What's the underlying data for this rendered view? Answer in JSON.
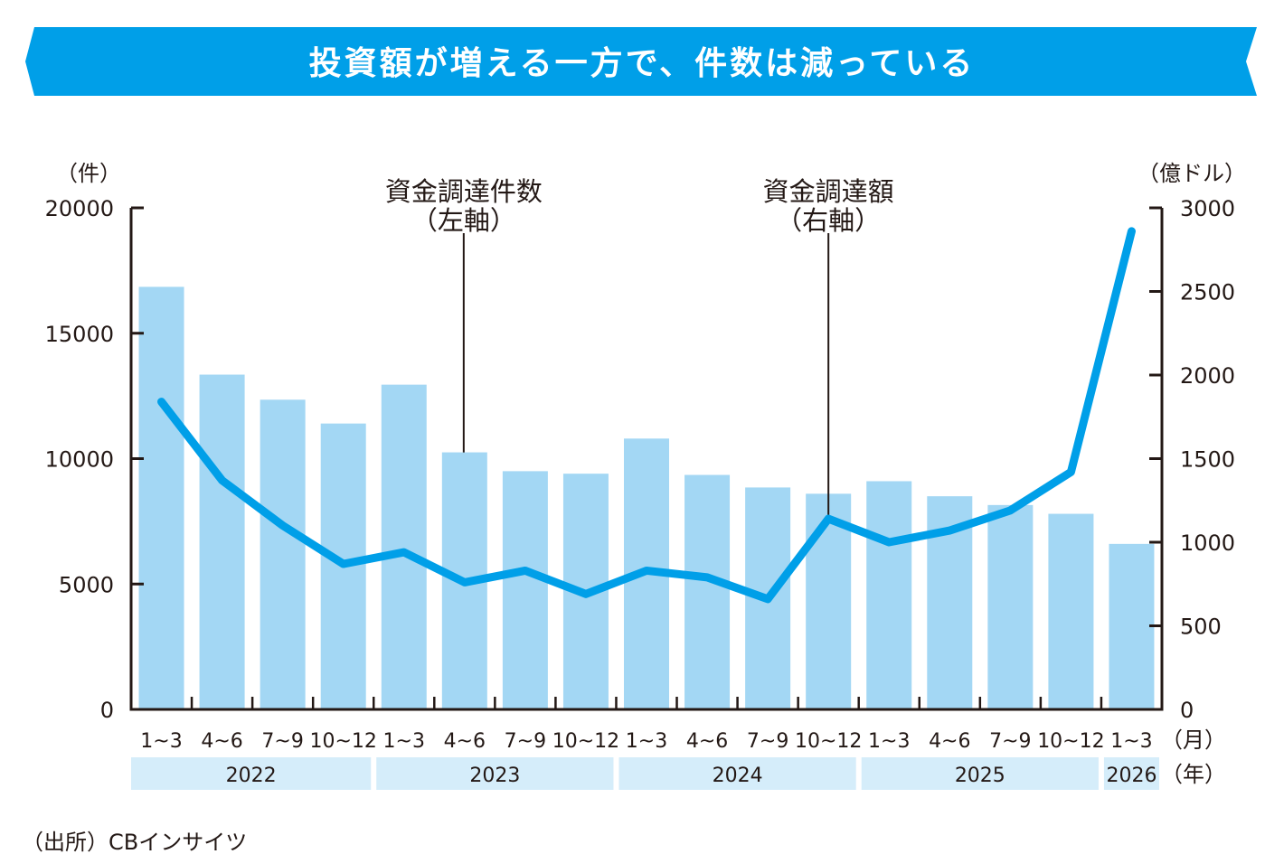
{
  "chart_data": {
    "type": "bar+line",
    "title": "投資額が増える一方で、件数は減っている",
    "left_axis": {
      "unit": "（件）",
      "ylim": [
        0,
        20000
      ],
      "ticks": [
        0,
        5000,
        10000,
        15000,
        20000
      ],
      "tick_labels": [
        "0",
        "5000",
        "10000",
        "15000",
        "20000"
      ]
    },
    "right_axis": {
      "unit": "（億ドル）",
      "ylim": [
        0,
        3000
      ],
      "ticks": [
        0,
        500,
        1000,
        1500,
        2000,
        2500,
        3000
      ],
      "tick_labels": [
        "0",
        "500",
        "1000",
        "1500",
        "2000",
        "2500",
        "3000"
      ]
    },
    "categories": [
      "1~3",
      "4~6",
      "7~9",
      "10~12",
      "1~3",
      "4~6",
      "7~9",
      "10~12",
      "1~3",
      "4~6",
      "7~9",
      "10~12",
      "1~3",
      "4~6",
      "7~9",
      "10~12",
      "1~3"
    ],
    "month_unit": "（月）",
    "years": [
      {
        "label": "2022",
        "span": 4
      },
      {
        "label": "2023",
        "span": 4
      },
      {
        "label": "2024",
        "span": 4
      },
      {
        "label": "2025",
        "span": 4
      },
      {
        "label": "2026",
        "span": 1
      }
    ],
    "year_unit": "（年）",
    "series": [
      {
        "name": "資金調達件数（左軸）",
        "type": "bar",
        "axis": "left",
        "values": [
          16850,
          13350,
          12350,
          11400,
          12950,
          10250,
          9500,
          9400,
          10800,
          9350,
          8850,
          8600,
          9100,
          8500,
          8150,
          7800,
          6600
        ]
      },
      {
        "name": "資金調達額（右軸）",
        "type": "line",
        "axis": "right",
        "values": [
          1840,
          1370,
          1100,
          870,
          940,
          760,
          830,
          690,
          830,
          790,
          660,
          1140,
          1000,
          1070,
          1190,
          1420,
          2860
        ]
      }
    ],
    "annotations": [
      {
        "line1": "資金調達件数",
        "line2": "（左軸）"
      },
      {
        "line1": "資金調達額",
        "line2": "（右軸）"
      }
    ],
    "source": "（出所）CBインサイツ",
    "colors": {
      "bar": "#a3d7f4",
      "line": "#009fe8",
      "banner": "#009fe8",
      "year_band": "#d5edfa",
      "axis": "#231815"
    }
  }
}
